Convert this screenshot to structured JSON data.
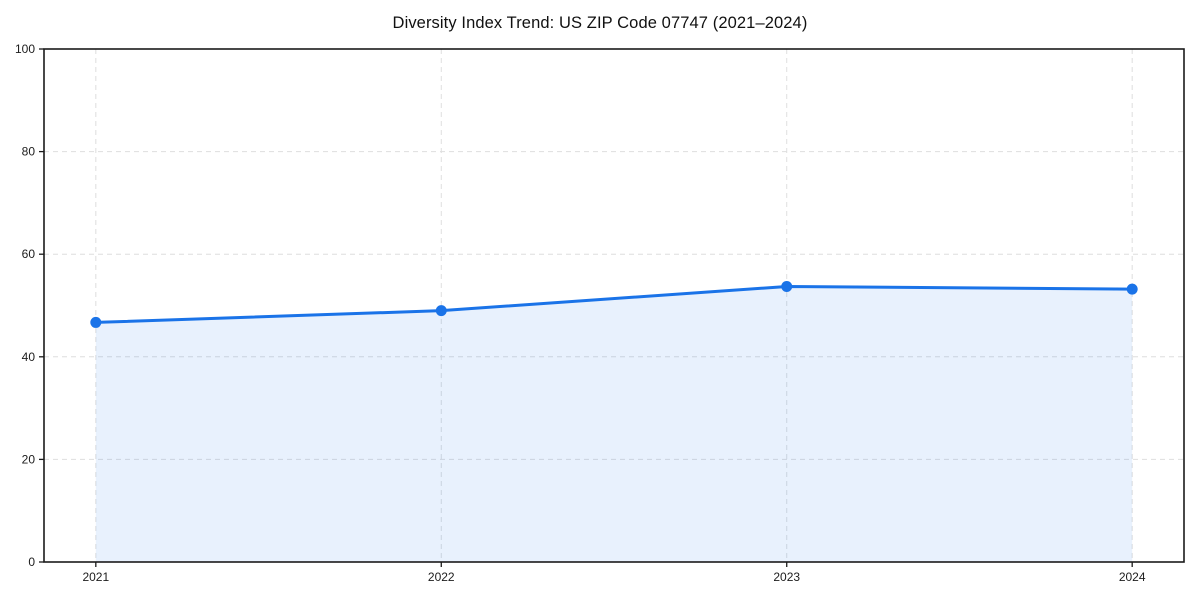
{
  "chart_data": {
    "type": "line",
    "title": "Diversity Index Trend: US ZIP Code 07747 (2021–2024)",
    "x": [
      2021,
      2022,
      2023,
      2024
    ],
    "series": [
      {
        "name": "Diversity Index",
        "values": [
          46.7,
          49.0,
          53.7,
          53.2
        ]
      }
    ],
    "xlabel": "",
    "ylabel": "",
    "ylim": [
      0,
      100
    ],
    "yticks": [
      0,
      20,
      40,
      60,
      80,
      100
    ],
    "xticks": [
      2021,
      2022,
      2023,
      2024
    ],
    "x_margin_fraction": 0.05,
    "grid": true,
    "grid_style": "dashed",
    "legend": false,
    "area_fill_to_zero": true,
    "colors": {
      "line": "#1a73e8",
      "marker": "#1a73e8",
      "area_fill": "rgba(26,115,232,0.10)",
      "gridline": "#dedede",
      "spine": "#1a1a1a",
      "tick_label": "#1c1c1c",
      "background": "#ffffff"
    }
  }
}
